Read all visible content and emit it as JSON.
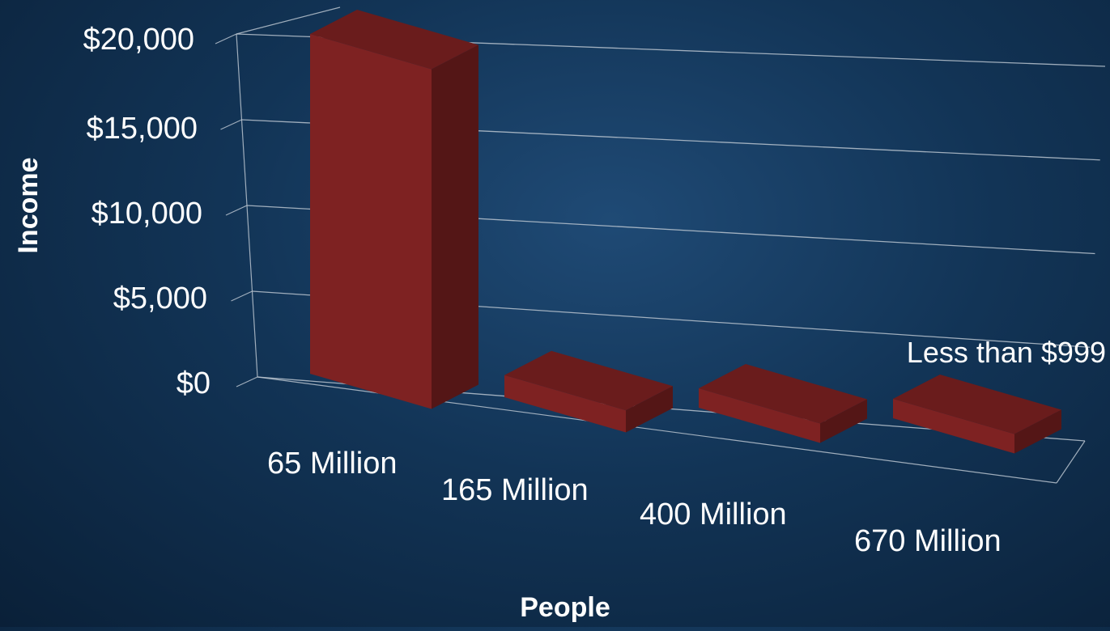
{
  "chart_data": {
    "type": "bar",
    "title": "",
    "xlabel": "People",
    "ylabel": "Income",
    "categories": [
      "65 Million",
      "165 Million",
      "400 Million",
      "670 Million"
    ],
    "values": [
      20000,
      1300,
      1000,
      900
    ],
    "yticks": [
      "$0",
      "$5,000",
      "$10,000",
      "$15,000",
      "$20,000"
    ],
    "ylim": [
      0,
      20000
    ],
    "grid": true,
    "annotations": [
      {
        "text": "Less than $999",
        "category": "670 Million"
      }
    ],
    "colors": {
      "bar_front": "#7e2222",
      "bar_side": "#541616",
      "bar_top": "#6a1c1c",
      "gridline": "#b9c4cf",
      "background": "#123456"
    }
  }
}
